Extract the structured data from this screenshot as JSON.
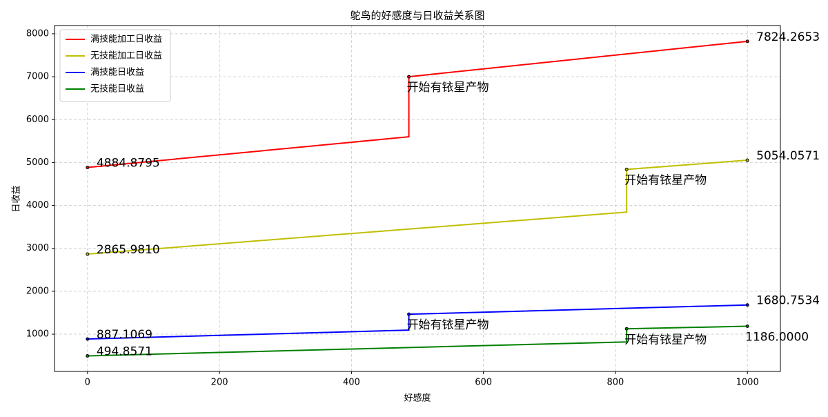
{
  "chart_data": {
    "type": "line",
    "title": "鸵鸟的好感度与日收益关系图",
    "x_label": "好感度",
    "y_label": "日收益",
    "xlim": [
      -50,
      1050
    ],
    "xticks": [
      0,
      200,
      400,
      600,
      800,
      1000
    ],
    "ylim": [
      132,
      8192
    ],
    "yticks": [
      1000,
      2000,
      3000,
      4000,
      5000,
      6000,
      7000,
      8000
    ],
    "grid": true,
    "legend": "upper-left",
    "series": [
      {
        "name": "满技能加工日收益",
        "color": "#ff0000",
        "x": [
          0,
          487,
          487,
          1000
        ],
        "values": [
          4884.8795,
          5600,
          7000,
          7824.2653
        ],
        "value_labels": [
          "4884.8795",
          null,
          null,
          "7824.2653"
        ],
        "annotation": "开始有铱星产物"
      },
      {
        "name": "无技能加工日收益",
        "color": "#bfbf00",
        "x": [
          0,
          817,
          817,
          1000
        ],
        "values": [
          2865.981,
          3845,
          4840,
          5054.0571
        ],
        "value_labels": [
          "2865.9810",
          null,
          null,
          "5054.0571"
        ],
        "annotation": "开始有铱星产物"
      },
      {
        "name": "满技能日收益",
        "color": "#0000ff",
        "x": [
          0,
          487,
          487,
          1000
        ],
        "values": [
          887.1069,
          1095,
          1465,
          1680.7534
        ],
        "value_labels": [
          "887.1069",
          null,
          null,
          "1680.7534"
        ],
        "annotation": "开始有铱星产物"
      },
      {
        "name": "无技能日收益",
        "color": "#008000",
        "x": [
          0,
          817,
          817,
          1000
        ],
        "values": [
          494.8571,
          820,
          1125,
          1186
        ],
        "value_labels": [
          "494.8571",
          null,
          null,
          "1186.0000"
        ],
        "annotation": "开始有铱星产物"
      }
    ]
  }
}
